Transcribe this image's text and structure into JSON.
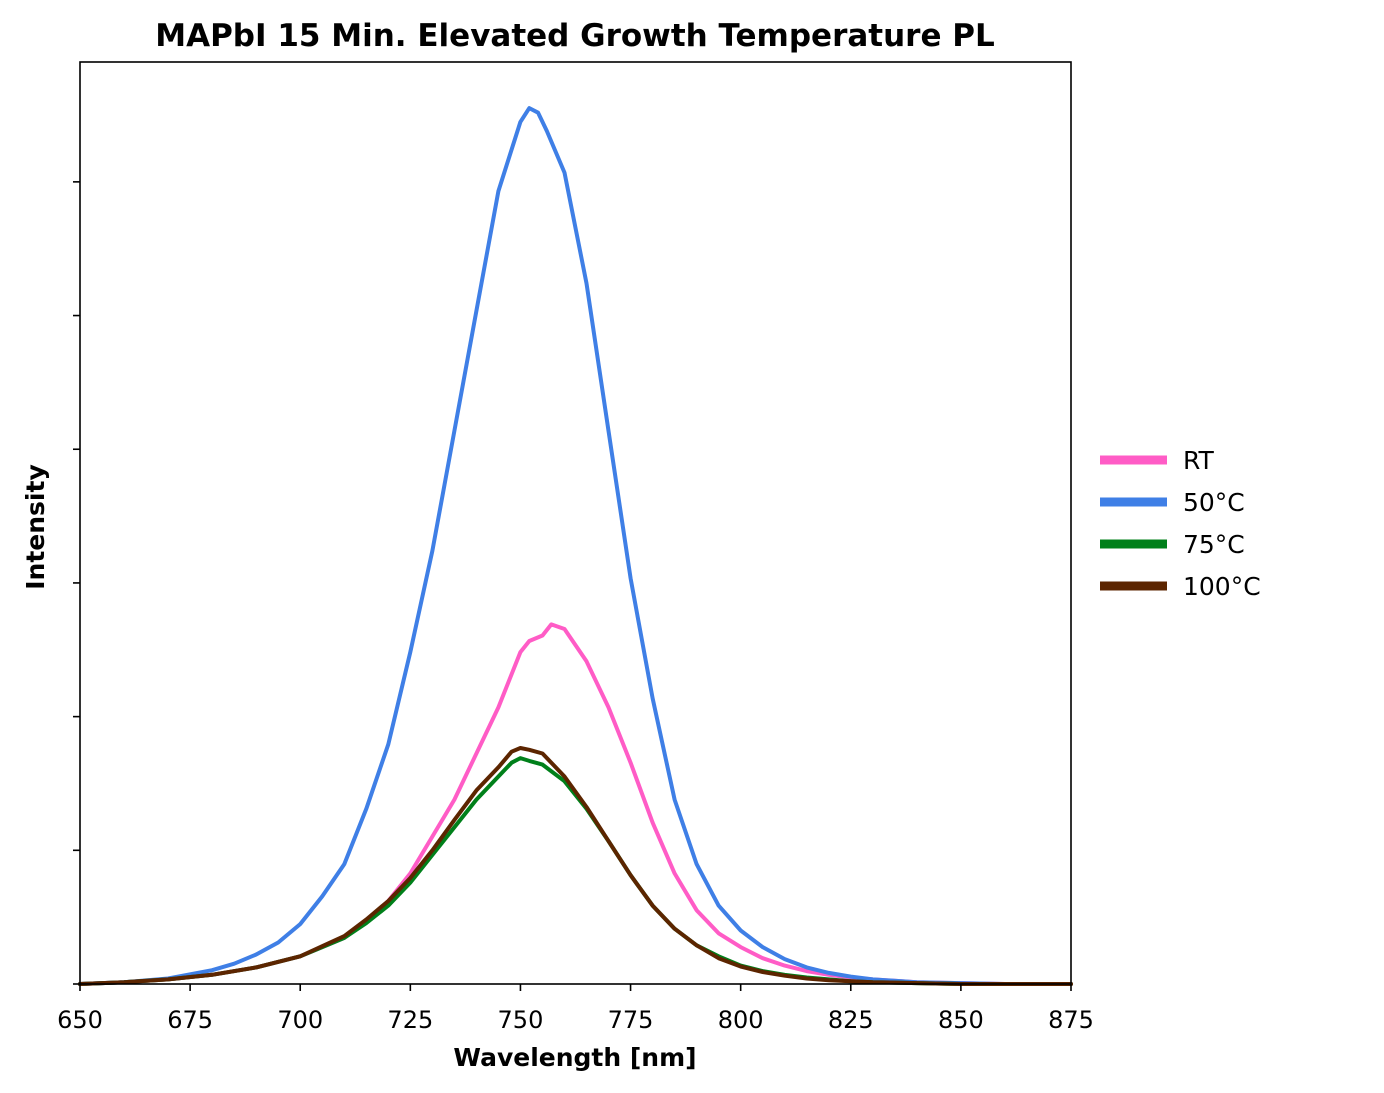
{
  "chart_data": {
    "type": "line",
    "title": "MAPbI 15 Min. Elevated Growth Temperature PL",
    "xlabel": "Wavelength [nm]",
    "ylabel": "Intensity",
    "xlim": [
      650,
      875
    ],
    "ylim": [
      0,
      1.0
    ],
    "x_ticks": [
      650,
      675,
      700,
      725,
      750,
      775,
      800,
      825,
      850,
      875
    ],
    "x_tick_labels": [
      "650",
      "675",
      "700",
      "725",
      "750",
      "775",
      "800",
      "825",
      "850",
      "875"
    ],
    "y_ticks": [
      0,
      0.145,
      0.29,
      0.435,
      0.58,
      0.725,
      0.87
    ],
    "y_tick_labels_shown": false,
    "grid": false,
    "legend_position": "right",
    "series": [
      {
        "name": "RT",
        "color": "#ff5cc6",
        "x": [
          650,
          660,
          670,
          680,
          690,
          700,
          705,
          710,
          715,
          720,
          725,
          730,
          735,
          740,
          745,
          750,
          752,
          755,
          757,
          760,
          765,
          770,
          775,
          780,
          785,
          790,
          795,
          800,
          805,
          810,
          815,
          820,
          825,
          830,
          840,
          850,
          860,
          875
        ],
        "y": [
          0.0,
          0.002,
          0.005,
          0.01,
          0.018,
          0.03,
          0.04,
          0.05,
          0.068,
          0.09,
          0.12,
          0.16,
          0.2,
          0.25,
          0.3,
          0.36,
          0.372,
          0.378,
          0.39,
          0.385,
          0.35,
          0.3,
          0.24,
          0.175,
          0.12,
          0.08,
          0.055,
          0.04,
          0.028,
          0.02,
          0.014,
          0.01,
          0.007,
          0.005,
          0.002,
          0.001,
          0.0,
          0.0
        ]
      },
      {
        "name": "50°C",
        "color": "#3f7fe6",
        "x": [
          650,
          660,
          670,
          680,
          685,
          690,
          695,
          700,
          705,
          710,
          715,
          720,
          725,
          730,
          735,
          740,
          745,
          750,
          752,
          754,
          756,
          760,
          765,
          770,
          775,
          780,
          785,
          790,
          795,
          800,
          805,
          810,
          815,
          820,
          825,
          830,
          840,
          850,
          860,
          875
        ],
        "y": [
          0.0,
          0.002,
          0.006,
          0.015,
          0.022,
          0.032,
          0.045,
          0.065,
          0.095,
          0.13,
          0.19,
          0.26,
          0.36,
          0.47,
          0.6,
          0.73,
          0.86,
          0.935,
          0.95,
          0.945,
          0.925,
          0.88,
          0.76,
          0.6,
          0.44,
          0.31,
          0.2,
          0.13,
          0.085,
          0.058,
          0.04,
          0.027,
          0.018,
          0.012,
          0.008,
          0.005,
          0.002,
          0.001,
          0.0,
          0.0
        ]
      },
      {
        "name": "75°C",
        "color": "#00801a",
        "x": [
          650,
          660,
          670,
          680,
          690,
          700,
          705,
          710,
          715,
          720,
          725,
          730,
          735,
          740,
          745,
          748,
          750,
          752,
          755,
          760,
          765,
          770,
          775,
          780,
          785,
          790,
          795,
          800,
          805,
          810,
          815,
          820,
          825,
          830,
          840,
          850,
          860,
          875
        ],
        "y": [
          0.0,
          0.002,
          0.005,
          0.01,
          0.018,
          0.03,
          0.04,
          0.05,
          0.066,
          0.085,
          0.11,
          0.14,
          0.17,
          0.2,
          0.225,
          0.24,
          0.245,
          0.242,
          0.238,
          0.22,
          0.19,
          0.155,
          0.118,
          0.085,
          0.06,
          0.042,
          0.03,
          0.02,
          0.014,
          0.01,
          0.007,
          0.005,
          0.003,
          0.002,
          0.001,
          0.0,
          0.0,
          0.0
        ]
      },
      {
        "name": "100°C",
        "color": "#5c2500",
        "x": [
          650,
          660,
          670,
          680,
          690,
          700,
          705,
          710,
          715,
          720,
          725,
          730,
          735,
          740,
          745,
          748,
          750,
          752,
          755,
          760,
          765,
          770,
          775,
          780,
          785,
          790,
          795,
          800,
          805,
          810,
          815,
          820,
          825,
          830,
          840,
          850,
          860,
          875
        ],
        "y": [
          0.0,
          0.002,
          0.005,
          0.01,
          0.018,
          0.03,
          0.041,
          0.052,
          0.07,
          0.09,
          0.115,
          0.145,
          0.178,
          0.21,
          0.235,
          0.252,
          0.256,
          0.254,
          0.25,
          0.225,
          0.192,
          0.155,
          0.118,
          0.085,
          0.06,
          0.042,
          0.028,
          0.019,
          0.013,
          0.009,
          0.006,
          0.004,
          0.003,
          0.002,
          0.001,
          0.0,
          0.0,
          0.0
        ]
      }
    ]
  }
}
